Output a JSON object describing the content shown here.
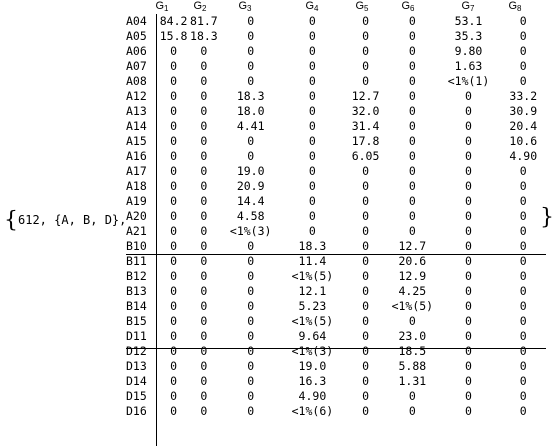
{
  "prefix_text": "{612, {A, B, D},",
  "close_brace": "}",
  "columns": [
    "G1",
    "G2",
    "G3",
    "G4",
    "G5",
    "G6",
    "G7",
    "G8"
  ],
  "rows": [
    {
      "label": "A04",
      "cells": [
        "84.2",
        "81.7",
        "0",
        "0",
        "0",
        "0",
        "53.1",
        "0"
      ]
    },
    {
      "label": "A05",
      "cells": [
        "15.8",
        "18.3",
        "0",
        "0",
        "0",
        "0",
        "35.3",
        "0"
      ]
    },
    {
      "label": "A06",
      "cells": [
        "0",
        "0",
        "0",
        "0",
        "0",
        "0",
        "9.80",
        "0"
      ]
    },
    {
      "label": "A07",
      "cells": [
        "0",
        "0",
        "0",
        "0",
        "0",
        "0",
        "1.63",
        "0"
      ]
    },
    {
      "label": "A08",
      "cells": [
        "0",
        "0",
        "0",
        "0",
        "0",
        "0",
        "<1%(1)",
        "0"
      ]
    },
    {
      "label": "A12",
      "cells": [
        "0",
        "0",
        "18.3",
        "0",
        "12.7",
        "0",
        "0",
        "33.2"
      ]
    },
    {
      "label": "A13",
      "cells": [
        "0",
        "0",
        "18.0",
        "0",
        "32.0",
        "0",
        "0",
        "30.9"
      ]
    },
    {
      "label": "A14",
      "cells": [
        "0",
        "0",
        "4.41",
        "0",
        "31.4",
        "0",
        "0",
        "20.4"
      ]
    },
    {
      "label": "A15",
      "cells": [
        "0",
        "0",
        "0",
        "0",
        "17.8",
        "0",
        "0",
        "10.6"
      ]
    },
    {
      "label": "A16",
      "cells": [
        "0",
        "0",
        "0",
        "0",
        "6.05",
        "0",
        "0",
        "4.90"
      ]
    },
    {
      "label": "A17",
      "cells": [
        "0",
        "0",
        "19.0",
        "0",
        "0",
        "0",
        "0",
        "0"
      ]
    },
    {
      "label": "A18",
      "cells": [
        "0",
        "0",
        "20.9",
        "0",
        "0",
        "0",
        "0",
        "0"
      ]
    },
    {
      "label": "A19",
      "cells": [
        "0",
        "0",
        "14.4",
        "0",
        "0",
        "0",
        "0",
        "0"
      ]
    },
    {
      "label": "A20",
      "cells": [
        "0",
        "0",
        "4.58",
        "0",
        "0",
        "0",
        "0",
        "0"
      ]
    },
    {
      "label": "A21",
      "cells": [
        "0",
        "0",
        "<1%(3)",
        "0",
        "0",
        "0",
        "0",
        "0"
      ]
    },
    {
      "label": "B10",
      "cells": [
        "0",
        "0",
        "0",
        "18.3",
        "0",
        "12.7",
        "0",
        "0"
      ]
    },
    {
      "label": "B11",
      "cells": [
        "0",
        "0",
        "0",
        "11.4",
        "0",
        "20.6",
        "0",
        "0"
      ]
    },
    {
      "label": "B12",
      "cells": [
        "0",
        "0",
        "0",
        "<1%(5)",
        "0",
        "12.9",
        "0",
        "0"
      ]
    },
    {
      "label": "B13",
      "cells": [
        "0",
        "0",
        "0",
        "12.1",
        "0",
        "4.25",
        "0",
        "0"
      ]
    },
    {
      "label": "B14",
      "cells": [
        "0",
        "0",
        "0",
        "5.23",
        "0",
        "<1%(5)",
        "0",
        "0"
      ]
    },
    {
      "label": "B15",
      "cells": [
        "0",
        "0",
        "0",
        "<1%(5)",
        "0",
        "0",
        "0",
        "0"
      ]
    },
    {
      "label": "D11",
      "cells": [
        "0",
        "0",
        "0",
        "9.64",
        "0",
        "23.0",
        "0",
        "0"
      ]
    },
    {
      "label": "D12",
      "cells": [
        "0",
        "0",
        "0",
        "<1%(3)",
        "0",
        "18.5",
        "0",
        "0"
      ]
    },
    {
      "label": "D13",
      "cells": [
        "0",
        "0",
        "0",
        "19.0",
        "0",
        "5.88",
        "0",
        "0"
      ]
    },
    {
      "label": "D14",
      "cells": [
        "0",
        "0",
        "0",
        "16.3",
        "0",
        "1.31",
        "0",
        "0"
      ]
    },
    {
      "label": "D15",
      "cells": [
        "0",
        "0",
        "0",
        "4.90",
        "0",
        "0",
        "0",
        "0"
      ]
    },
    {
      "label": "D16",
      "cells": [
        "0",
        "0",
        "0",
        "<1%(6)",
        "0",
        "0",
        "0",
        "0"
      ]
    }
  ]
}
